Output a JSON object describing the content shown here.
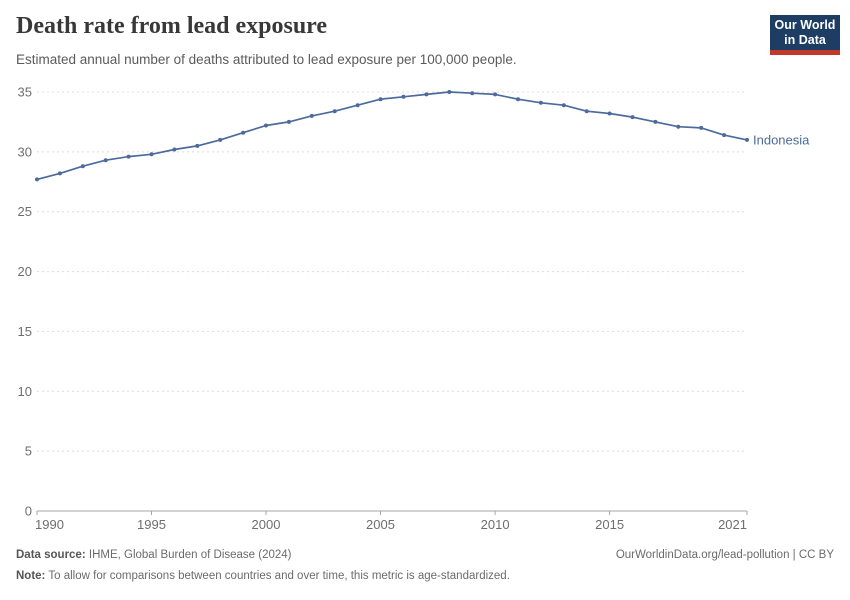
{
  "header": {
    "title": "Death rate from lead exposure",
    "subtitle": "Estimated annual number of deaths attributed to lead exposure per 100,000 people."
  },
  "logo": {
    "line1": "Our World",
    "line2": "in Data",
    "background_color": "#1d3d63",
    "accent_color": "#c0392b"
  },
  "chart_data": {
    "type": "line",
    "title": "Death rate from lead exposure",
    "subtitle": "Estimated annual number of deaths attributed to lead exposure per 100,000 people.",
    "x": [
      1990,
      1991,
      1992,
      1993,
      1994,
      1995,
      1996,
      1997,
      1998,
      1999,
      2000,
      2001,
      2002,
      2003,
      2004,
      2005,
      2006,
      2007,
      2008,
      2009,
      2010,
      2011,
      2012,
      2013,
      2014,
      2015,
      2016,
      2017,
      2018,
      2019,
      2020,
      2021
    ],
    "series": [
      {
        "name": "Indonesia",
        "color": "#4C6A9C",
        "values": [
          27.7,
          28.2,
          28.8,
          29.3,
          29.6,
          29.8,
          30.2,
          30.5,
          31.0,
          31.6,
          32.2,
          32.5,
          33.0,
          33.4,
          33.9,
          34.4,
          34.6,
          34.8,
          35.0,
          34.9,
          34.8,
          34.4,
          34.1,
          33.9,
          33.4,
          33.2,
          32.9,
          32.5,
          32.1,
          32.0,
          31.4,
          31.0
        ]
      }
    ],
    "xlabel": "",
    "ylabel": "",
    "ylim": [
      0,
      35
    ],
    "x_range": [
      1990,
      2021
    ],
    "yticks": [
      0,
      5,
      10,
      15,
      20,
      25,
      30,
      35
    ],
    "xticks": [
      1990,
      1995,
      2000,
      2005,
      2010,
      2015,
      2021
    ],
    "grid": "horizontal dashed",
    "grid_color": "#dcdcdc",
    "axis_color": "#a5a5a5",
    "tick_label_color": "#6e6e6e",
    "legend": "end-of-line entity label"
  },
  "footer": {
    "data_source_label": "Data source:",
    "data_source_text": "IHME, Global Burden of Disease (2024)",
    "credit": "OurWorldinData.org/lead-pollution | CC BY",
    "note_label": "Note:",
    "note_text": "To allow for comparisons between countries and over time, this metric is age-standardized."
  }
}
